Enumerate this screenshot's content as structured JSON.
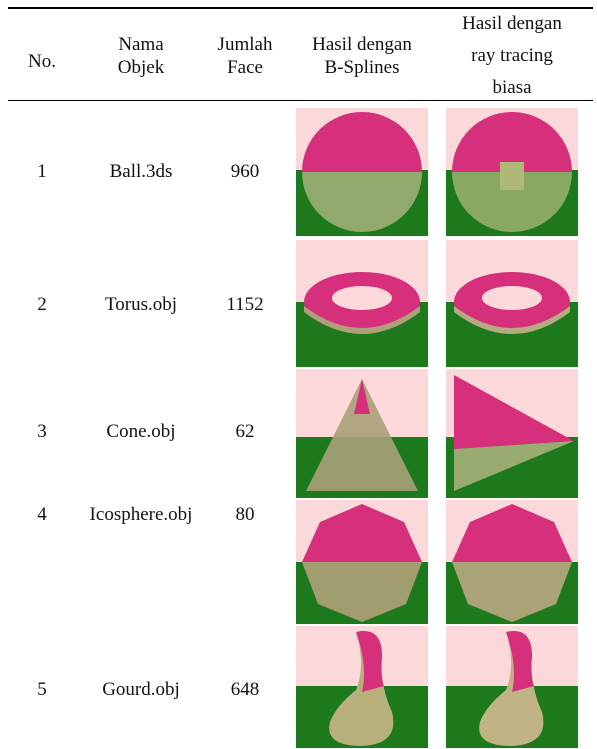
{
  "table": {
    "header": [
      [
        "No."
      ],
      [
        "Nama",
        "Objek"
      ],
      [
        "Jumlah",
        "Face"
      ],
      [
        "Hasil dengan",
        "B-Splines"
      ],
      [
        "Hasil dengan",
        "ray tracing",
        "biasa"
      ]
    ],
    "rows": [
      [
        "1",
        "Ball.3ds",
        "960"
      ],
      [
        "2",
        "Torus.obj",
        "1152"
      ],
      [
        "3",
        "Cone.obj",
        "62"
      ],
      [
        "4",
        "Icosphere.obj",
        "80"
      ],
      [
        "5",
        "Gourd.obj",
        "648"
      ]
    ]
  }
}
